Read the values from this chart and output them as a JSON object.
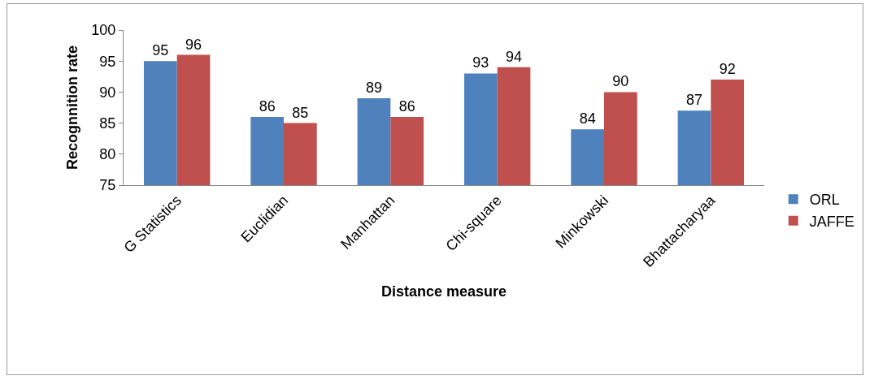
{
  "chart_data": {
    "type": "bar",
    "xlabel": "Distance measure",
    "ylabel": "Recognnition rate",
    "categories": [
      "G Statistics",
      "Euclidian",
      "Manhattan",
      "Chi-square",
      "Minkowski",
      "Bhattacharyaa"
    ],
    "series": [
      {
        "name": "ORL",
        "color": "#4f81bd",
        "values": [
          95,
          86,
          89,
          93,
          84,
          87
        ]
      },
      {
        "name": "JAFFE",
        "color": "#c0504d",
        "values": [
          96,
          85,
          86,
          94,
          90,
          92
        ]
      }
    ],
    "ylim": [
      75,
      100
    ],
    "yticks": [
      75,
      80,
      85,
      90,
      95,
      100
    ],
    "grid": false,
    "legend": "right",
    "data_labels": true
  }
}
